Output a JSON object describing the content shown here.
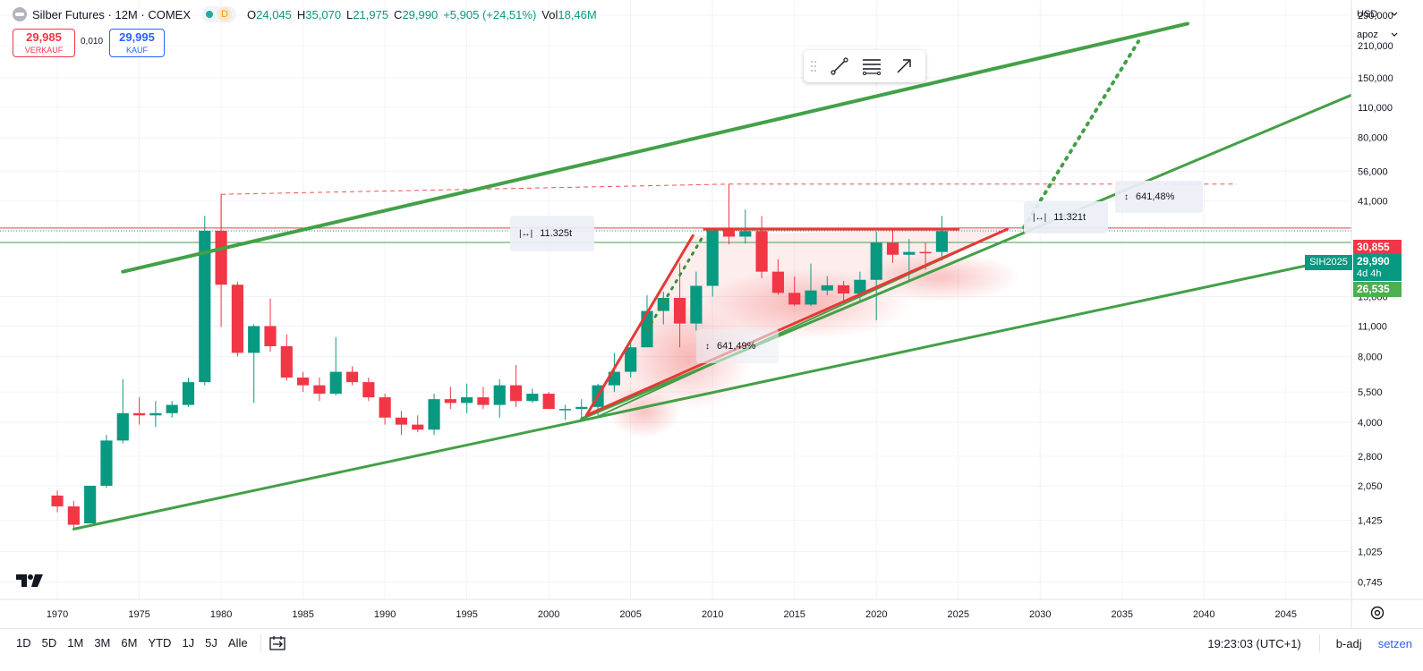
{
  "header": {
    "symbol_title": "Silber Futures · 12M · COMEX",
    "status_letter": "D",
    "ohlc": [
      {
        "k": "O",
        "v": "24,045"
      },
      {
        "k": "H",
        "v": "35,070"
      },
      {
        "k": "L",
        "v": "21,975"
      },
      {
        "k": "C",
        "v": "29,990"
      },
      {
        "k": "",
        "v": "+5,905 (+24,51%)"
      },
      {
        "k": "Vol",
        "v": "18,46M"
      }
    ]
  },
  "trade": {
    "sell_price": "29,985",
    "sell_label": "VERKAUF",
    "spread": "0,010",
    "buy_price": "29,995",
    "buy_label": "KAUF"
  },
  "drawing_toolbar": {
    "icons": [
      "drag-grip-icon",
      "trend-line-icon",
      "line-settings-icon",
      "arrow-icon"
    ]
  },
  "axis": {
    "currency": "USD",
    "scale_mode": "apoz",
    "price_ticks": [
      "290,000",
      "210,000",
      "150,000",
      "110,000",
      "80,000",
      "56,000",
      "41,000",
      "15,000",
      "11,000",
      "8,000",
      "5,500",
      "4,000",
      "2,800",
      "2,050",
      "1,425",
      "1,025",
      "0,745"
    ],
    "price_tick_values": [
      290,
      210,
      150,
      110,
      80,
      56,
      41,
      15,
      11,
      8,
      5.5,
      4,
      2.8,
      2.05,
      1.425,
      1.025,
      0.745
    ],
    "year_ticks": [
      "1970",
      "1975",
      "1980",
      "1985",
      "1990",
      "1995",
      "2000",
      "2005",
      "2010",
      "2015",
      "2020",
      "2025",
      "2030",
      "2035",
      "2040",
      "2045"
    ],
    "year_tick_values": [
      1970,
      1975,
      1980,
      1985,
      1990,
      1995,
      2000,
      2005,
      2010,
      2015,
      2020,
      2025,
      2030,
      2035,
      2040,
      2045
    ]
  },
  "price_tags": {
    "red_line_value": "30,855",
    "last_price": "29,990",
    "countdown": "4d 4h",
    "green_line_value": "26,535",
    "symbol_label": "SIH2025"
  },
  "measurements": [
    {
      "icon": "horizontal-range-icon",
      "value": "11.325t"
    },
    {
      "icon": "vertical-range-icon",
      "value": "641,49%"
    },
    {
      "icon": "vertical-range-icon",
      "value": "641,48%"
    },
    {
      "icon": "horizontal-range-icon",
      "value": "11.321t"
    }
  ],
  "chart_data": {
    "type": "candlestick",
    "scale": "log",
    "x_unit": "year",
    "xlim": [
      1966.5,
      2049
    ],
    "ylim": [
      0.62,
      340
    ],
    "candles": [
      {
        "t": 1970,
        "o": 1.85,
        "h": 1.95,
        "l": 1.55,
        "c": 1.65
      },
      {
        "t": 1971,
        "o": 1.65,
        "h": 1.75,
        "l": 1.28,
        "c": 1.36
      },
      {
        "t": 1972,
        "o": 1.38,
        "h": 2.05,
        "l": 1.38,
        "c": 2.05
      },
      {
        "t": 1973,
        "o": 2.05,
        "h": 3.5,
        "l": 2.0,
        "c": 3.3
      },
      {
        "t": 1974,
        "o": 3.3,
        "h": 6.3,
        "l": 3.2,
        "c": 4.4
      },
      {
        "t": 1975,
        "o": 4.4,
        "h": 5.2,
        "l": 3.9,
        "c": 4.3
      },
      {
        "t": 1976,
        "o": 4.3,
        "h": 5.0,
        "l": 3.8,
        "c": 4.4
      },
      {
        "t": 1977,
        "o": 4.4,
        "h": 5.0,
        "l": 4.2,
        "c": 4.8
      },
      {
        "t": 1978,
        "o": 4.8,
        "h": 6.4,
        "l": 4.7,
        "c": 6.1
      },
      {
        "t": 1979,
        "o": 6.1,
        "h": 35.0,
        "l": 5.9,
        "c": 30.0
      },
      {
        "t": 1980,
        "o": 30.0,
        "h": 44.0,
        "l": 10.9,
        "c": 17.0
      },
      {
        "t": 1981,
        "o": 17.0,
        "h": 17.5,
        "l": 8.0,
        "c": 8.3
      },
      {
        "t": 1982,
        "o": 8.3,
        "h": 11.2,
        "l": 4.9,
        "c": 11.0
      },
      {
        "t": 1983,
        "o": 11.0,
        "h": 14.7,
        "l": 8.4,
        "c": 8.9
      },
      {
        "t": 1984,
        "o": 8.9,
        "h": 10.1,
        "l": 6.2,
        "c": 6.4
      },
      {
        "t": 1985,
        "o": 6.4,
        "h": 6.8,
        "l": 5.5,
        "c": 5.9
      },
      {
        "t": 1986,
        "o": 5.9,
        "h": 6.4,
        "l": 5.0,
        "c": 5.4
      },
      {
        "t": 1987,
        "o": 5.4,
        "h": 9.8,
        "l": 5.3,
        "c": 6.8
      },
      {
        "t": 1988,
        "o": 6.8,
        "h": 7.2,
        "l": 5.9,
        "c": 6.1
      },
      {
        "t": 1989,
        "o": 6.1,
        "h": 6.4,
        "l": 5.0,
        "c": 5.2
      },
      {
        "t": 1990,
        "o": 5.2,
        "h": 5.4,
        "l": 3.9,
        "c": 4.2
      },
      {
        "t": 1991,
        "o": 4.2,
        "h": 4.5,
        "l": 3.5,
        "c": 3.9
      },
      {
        "t": 1992,
        "o": 3.9,
        "h": 4.3,
        "l": 3.6,
        "c": 3.7
      },
      {
        "t": 1993,
        "o": 3.7,
        "h": 5.4,
        "l": 3.5,
        "c": 5.1
      },
      {
        "t": 1994,
        "o": 5.1,
        "h": 5.8,
        "l": 4.6,
        "c": 4.9
      },
      {
        "t": 1995,
        "o": 4.9,
        "h": 6.0,
        "l": 4.4,
        "c": 5.2
      },
      {
        "t": 1996,
        "o": 5.2,
        "h": 5.8,
        "l": 4.6,
        "c": 4.8
      },
      {
        "t": 1997,
        "o": 4.8,
        "h": 6.3,
        "l": 4.2,
        "c": 5.9
      },
      {
        "t": 1998,
        "o": 5.9,
        "h": 7.3,
        "l": 4.7,
        "c": 5.0
      },
      {
        "t": 1999,
        "o": 5.0,
        "h": 5.7,
        "l": 4.9,
        "c": 5.4
      },
      {
        "t": 2000,
        "o": 5.4,
        "h": 5.5,
        "l": 4.6,
        "c": 4.6
      },
      {
        "t": 2001,
        "o": 4.6,
        "h": 4.8,
        "l": 4.1,
        "c": 4.6
      },
      {
        "t": 2002,
        "o": 4.6,
        "h": 5.1,
        "l": 4.2,
        "c": 4.7
      },
      {
        "t": 2003,
        "o": 4.7,
        "h": 6.0,
        "l": 4.3,
        "c": 5.9
      },
      {
        "t": 2004,
        "o": 5.9,
        "h": 8.3,
        "l": 5.5,
        "c": 6.8
      },
      {
        "t": 2005,
        "o": 6.8,
        "h": 9.2,
        "l": 6.4,
        "c": 8.8
      },
      {
        "t": 2006,
        "o": 8.8,
        "h": 15.2,
        "l": 8.8,
        "c": 12.9
      },
      {
        "t": 2007,
        "o": 12.9,
        "h": 15.8,
        "l": 11.2,
        "c": 14.8
      },
      {
        "t": 2008,
        "o": 14.8,
        "h": 21.3,
        "l": 8.8,
        "c": 11.3
      },
      {
        "t": 2009,
        "o": 11.3,
        "h": 19.5,
        "l": 10.5,
        "c": 16.8
      },
      {
        "t": 2010,
        "o": 16.8,
        "h": 31.0,
        "l": 15.0,
        "c": 30.6
      },
      {
        "t": 2011,
        "o": 30.6,
        "h": 49.0,
        "l": 26.0,
        "c": 28.2
      },
      {
        "t": 2012,
        "o": 28.2,
        "h": 37.5,
        "l": 26.2,
        "c": 29.9
      },
      {
        "t": 2013,
        "o": 29.9,
        "h": 35.0,
        "l": 18.2,
        "c": 19.5
      },
      {
        "t": 2014,
        "o": 19.5,
        "h": 22.2,
        "l": 15.3,
        "c": 15.6
      },
      {
        "t": 2015,
        "o": 15.6,
        "h": 18.5,
        "l": 13.6,
        "c": 13.8
      },
      {
        "t": 2016,
        "o": 13.8,
        "h": 21.2,
        "l": 13.6,
        "c": 16.0
      },
      {
        "t": 2017,
        "o": 16.0,
        "h": 18.6,
        "l": 15.2,
        "c": 16.9
      },
      {
        "t": 2018,
        "o": 16.9,
        "h": 17.7,
        "l": 13.9,
        "c": 15.5
      },
      {
        "t": 2019,
        "o": 15.5,
        "h": 19.5,
        "l": 14.3,
        "c": 17.9
      },
      {
        "t": 2020,
        "o": 17.9,
        "h": 29.8,
        "l": 11.7,
        "c": 26.4
      },
      {
        "t": 2021,
        "o": 26.4,
        "h": 30.1,
        "l": 21.4,
        "c": 23.3
      },
      {
        "t": 2022,
        "o": 23.3,
        "h": 27.5,
        "l": 17.5,
        "c": 24.0
      },
      {
        "t": 2023,
        "o": 24.0,
        "h": 26.5,
        "l": 19.9,
        "c": 23.8
      },
      {
        "t": 2024,
        "o": 24.0,
        "h": 35.1,
        "l": 21.9,
        "c": 29.9
      }
    ],
    "trendlines": [
      {
        "name": "upper-channel",
        "color": "#43a047",
        "width": 4,
        "style": "solid",
        "from": [
          1974,
          19.5
        ],
        "to": [
          2039,
          265
        ]
      },
      {
        "name": "mid-channel",
        "color": "#43a047",
        "width": 3,
        "style": "solid",
        "from": [
          2002,
          4.15
        ],
        "to": [
          2049,
          125
        ]
      },
      {
        "name": "lower-channel",
        "color": "#43a047",
        "width": 3,
        "style": "solid",
        "from": [
          1971,
          1.3
        ],
        "to": [
          2049,
          23
        ]
      },
      {
        "name": "triangle-support",
        "color": "#43a047",
        "width": 2,
        "style": "solid",
        "from": [
          2003,
          4.25
        ],
        "to": [
          2028,
          30.5
        ]
      },
      {
        "name": "projection",
        "color": "#43a047",
        "width": 4,
        "style": "dotted",
        "from": [
          2029,
          31
        ],
        "to": [
          2036,
          220
        ]
      },
      {
        "name": "projection-past",
        "color": "#388e3c",
        "width": 3,
        "style": "dotted",
        "from": [
          2006,
          10.5
        ],
        "to": [
          2009.5,
          29
        ]
      },
      {
        "name": "wedge-left",
        "color": "#e53935",
        "width": 3,
        "style": "solid",
        "from": [
          2002.3,
          4.3
        ],
        "to": [
          2008.8,
          28.5
        ]
      },
      {
        "name": "wedge-bottom",
        "color": "#e53935",
        "width": 3,
        "style": "solid",
        "from": [
          2002.3,
          4.3
        ],
        "to": [
          2028,
          30.5
        ]
      },
      {
        "name": "wedge-top",
        "color": "#e53935",
        "width": 3,
        "style": "solid",
        "from": [
          2009.5,
          30.5
        ],
        "to": [
          2025,
          30.5
        ]
      }
    ],
    "horizontal_lines": [
      {
        "name": "resistance",
        "value": 30.855,
        "color": "#f23645",
        "width": 1
      },
      {
        "name": "last-price",
        "value": 29.99,
        "color": "#089981",
        "width": 1,
        "dotted": true
      },
      {
        "name": "support",
        "value": 26.535,
        "color": "#43a047",
        "width": 1
      }
    ],
    "dashed_levels": [
      {
        "name": "high-1980",
        "color": "#ef5350",
        "from": [
          1980,
          44
        ],
        "to": [
          2011,
          49
        ]
      },
      {
        "name": "high-2011",
        "color": "#ef5350",
        "from": [
          2011,
          49
        ],
        "to": [
          2042,
          49
        ]
      }
    ]
  },
  "bottom_bar": {
    "ranges": [
      "1D",
      "5D",
      "1M",
      "3M",
      "6M",
      "YTD",
      "1J",
      "5J",
      "Alle"
    ],
    "clock": "19:23:03 (UTC+1)",
    "adj": "b-adj",
    "set": "setzen"
  }
}
